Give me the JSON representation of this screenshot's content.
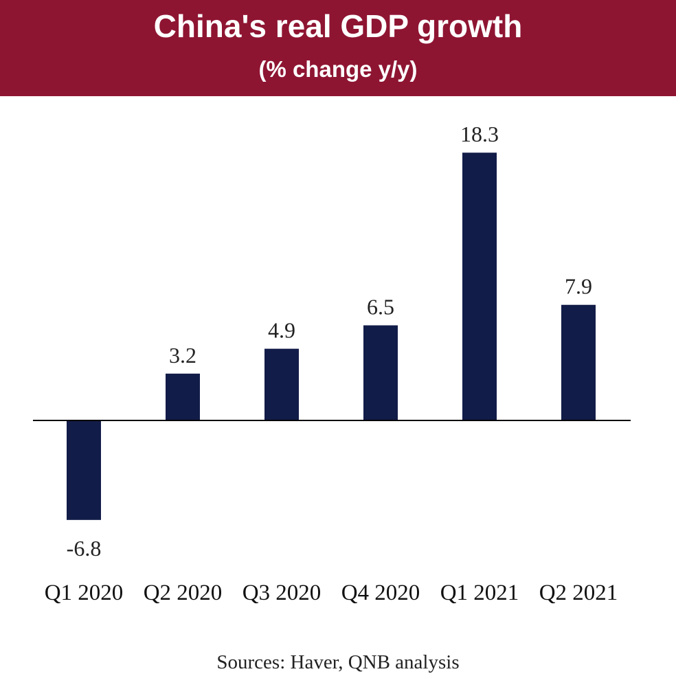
{
  "colors": {
    "header_bg": "#8e1532",
    "bar": "#121c48",
    "axis": "#000000"
  },
  "chart_data": {
    "type": "bar",
    "title": "China's real GDP growth",
    "subtitle": "(% change y/y)",
    "categories": [
      "Q1 2020",
      "Q2 2020",
      "Q3 2020",
      "Q4 2020",
      "Q1 2021",
      "Q2 2021"
    ],
    "values": [
      -6.8,
      3.2,
      4.9,
      6.5,
      18.3,
      7.9
    ],
    "value_labels": [
      "-6.8",
      "3.2",
      "4.9",
      "6.5",
      "18.3",
      "7.9"
    ],
    "xlabel": "",
    "ylabel": "",
    "ylim": [
      -6.8,
      18.3
    ],
    "grid": false,
    "source": "Sources: Haver, QNB analysis"
  }
}
